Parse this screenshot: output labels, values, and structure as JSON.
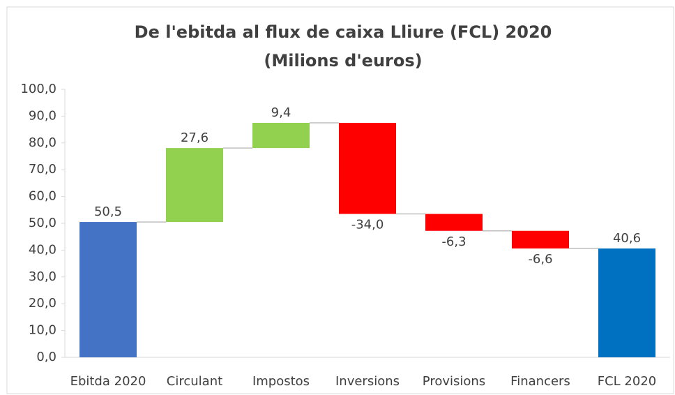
{
  "chart_data": {
    "type": "waterfall",
    "title": "De l'ebitda al flux de caixa Lliure (FCL) 2020",
    "subtitle": "(Milions d'euros)",
    "categories": [
      "Ebitda 2020",
      "Circulant",
      "Impostos",
      "Inversions",
      "Provisions",
      "Financers",
      "FCL 2020"
    ],
    "values": [
      50.5,
      27.6,
      9.4,
      -34.0,
      -6.3,
      -6.6,
      40.6
    ],
    "value_labels": [
      "50,5",
      "27,6",
      "9,4",
      "-34,0",
      "-6,3",
      "-6,6",
      "40,6"
    ],
    "measure": [
      "total",
      "relative",
      "relative",
      "relative",
      "relative",
      "relative",
      "total"
    ],
    "colors": [
      "#4472c4",
      "#92d050",
      "#92d050",
      "#ff0000",
      "#ff0000",
      "#ff0000",
      "#0070c0"
    ],
    "ylim": [
      0,
      100
    ],
    "yticks": [
      {
        "value": 0,
        "label": "0,0"
      },
      {
        "value": 10,
        "label": "10,0"
      },
      {
        "value": 20,
        "label": "20,0"
      },
      {
        "value": 30,
        "label": "30,0"
      },
      {
        "value": 40,
        "label": "40,0"
      },
      {
        "value": 50,
        "label": "50,0"
      },
      {
        "value": 60,
        "label": "60,0"
      },
      {
        "value": 70,
        "label": "70,0"
      },
      {
        "value": 80,
        "label": "80,0"
      },
      {
        "value": 90,
        "label": "90,0"
      },
      {
        "value": 100,
        "label": "100,0"
      }
    ],
    "grid": false
  }
}
